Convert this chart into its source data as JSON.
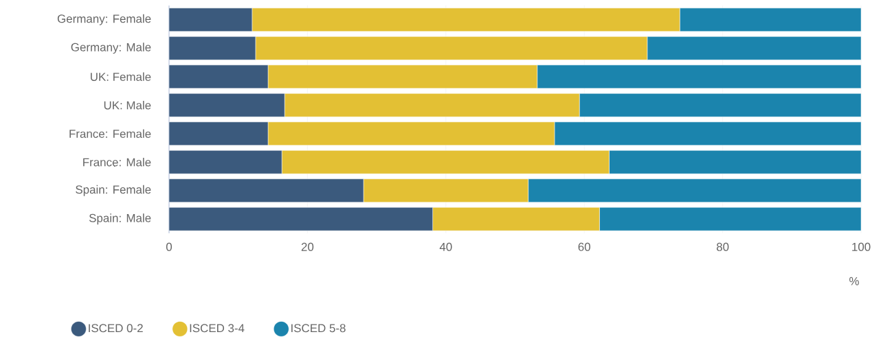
{
  "chart_data": {
    "type": "bar",
    "orientation": "horizontal",
    "stacked": true,
    "xlabel": "%",
    "categories": [
      "Germany: Female",
      "Germany: Male",
      "UK: Female",
      "UK: Male",
      "France: Female",
      "France: Male",
      "Spain: Female",
      "Spain: Male"
    ],
    "series": [
      {
        "name": "ISCED 0-2",
        "color": "#3b5a7d",
        "values": [
          12.0,
          12.5,
          14.3,
          16.7,
          14.3,
          16.3,
          28.1,
          38.1
        ]
      },
      {
        "name": "ISCED 3-4",
        "color": "#e3c034",
        "values": [
          61.8,
          56.6,
          38.9,
          42.6,
          41.4,
          47.3,
          23.8,
          24.1
        ]
      },
      {
        "name": "ISCED 5-8",
        "color": "#1b84ad",
        "values": [
          26.2,
          30.9,
          46.8,
          40.7,
          44.3,
          36.4,
          48.1,
          37.8
        ]
      }
    ],
    "xlim": [
      0,
      100
    ],
    "xticks": [
      0,
      20,
      40,
      60,
      80,
      100
    ],
    "grid": "x",
    "legend": "bottom"
  }
}
